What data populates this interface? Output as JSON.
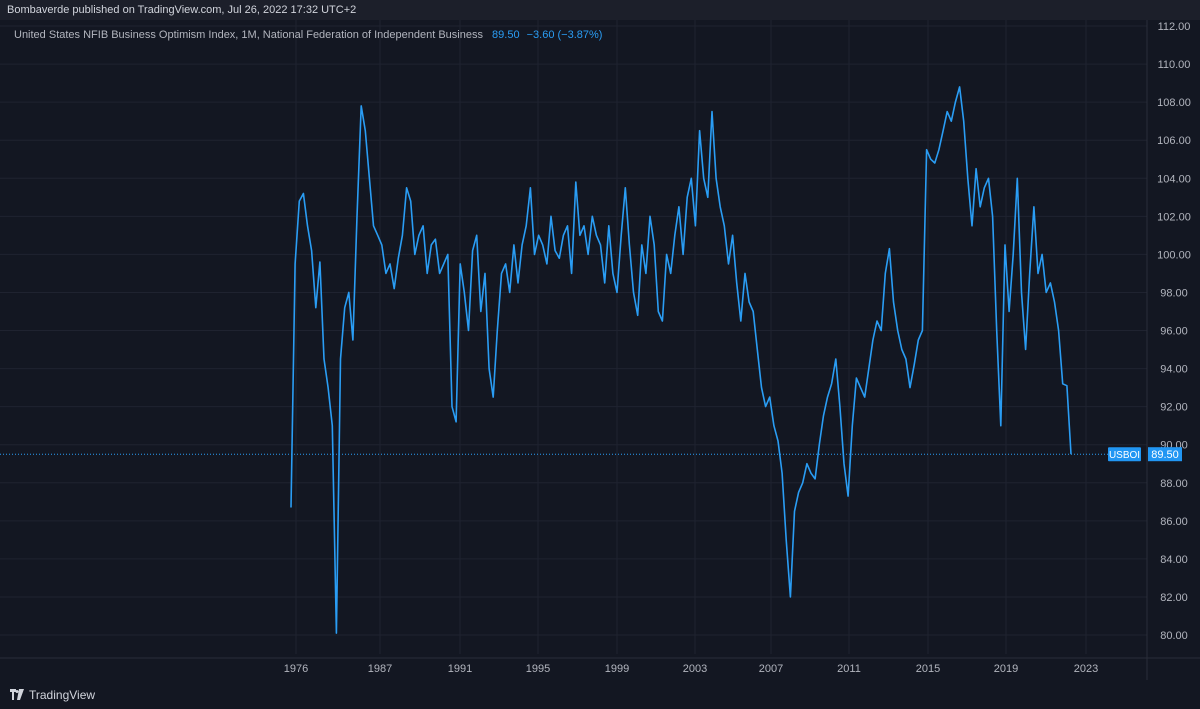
{
  "header": {
    "published": "Bombaverde published on TradingView.com, Jul 26, 2022 17:32 UTC+2"
  },
  "legend": {
    "name": "United States NFIB Business Optimism Index, 1M, National Federation of Independent Business",
    "value": "89.50",
    "change": "−3.60 (−3.87%)"
  },
  "price_tag": {
    "symbol": "USBOI",
    "value": "89.50"
  },
  "footer": {
    "brand": "TradingView"
  },
  "colors": {
    "background": "#131722",
    "line": "#2a9df4",
    "grid": "#1f2330",
    "tag": "#2196f3"
  },
  "chart_data": {
    "type": "line",
    "title": "United States NFIB Business Optimism Index, 1M, National Federation of Independent Business",
    "x_tick_labels": [
      "1976",
      "1987",
      "1991",
      "1995",
      "1999",
      "2003",
      "2007",
      "2011",
      "2015",
      "2019",
      "2023"
    ],
    "y_ticks": [
      80,
      82,
      84,
      86,
      88,
      90,
      92,
      94,
      96,
      98,
      100,
      102,
      104,
      106,
      108,
      110,
      112
    ],
    "ylim": [
      79,
      112
    ],
    "last_value": 89.5,
    "series": [
      {
        "values": [
          86.7,
          99.5,
          102.8,
          103.2,
          101.5,
          100.2,
          97.2,
          99.6,
          94.5,
          93.0,
          91.0,
          80.1,
          94.5,
          97.2,
          98.0,
          95.5,
          102.0,
          107.8,
          106.5,
          104.0,
          101.5,
          101.0,
          100.5,
          99.0,
          99.5,
          98.2,
          99.8,
          101.0,
          103.5,
          102.8,
          100.0,
          101.0,
          101.5,
          99.0,
          100.5,
          100.8,
          99.0,
          99.5,
          100.0,
          92.0,
          91.2,
          99.5,
          98.0,
          96.0,
          100.2,
          101.0,
          97.0,
          99.0,
          94.0,
          92.5,
          96.0,
          99.0,
          99.5,
          98.0,
          100.5,
          98.5,
          100.5,
          101.5,
          103.5,
          100.0,
          101.0,
          100.5,
          99.5,
          102.0,
          100.2,
          99.8,
          101.0,
          101.5,
          99.0,
          103.8,
          101.0,
          101.5,
          100.0,
          102.0,
          101.0,
          100.5,
          98.5,
          101.5,
          99.0,
          98.0,
          101.0,
          103.5,
          100.5,
          98.0,
          96.8,
          100.5,
          99.0,
          102.0,
          100.5,
          97.0,
          96.5,
          100.0,
          99.0,
          101.0,
          102.5,
          100.0,
          103.0,
          104.0,
          101.5,
          106.5,
          104.0,
          103.0,
          107.5,
          104.0,
          102.5,
          101.5,
          99.5,
          101.0,
          98.5,
          96.5,
          99.0,
          97.5,
          97.0,
          95.0,
          93.0,
          92.0,
          92.5,
          91.0,
          90.2,
          88.5,
          85.0,
          82.0,
          86.5,
          87.5,
          88.0,
          89.0,
          88.5,
          88.2,
          90.0,
          91.5,
          92.5,
          93.2,
          94.5,
          92.0,
          89.0,
          87.3,
          91.0,
          93.5,
          93.0,
          92.5,
          94.0,
          95.5,
          96.5,
          96.0,
          99.0,
          100.3,
          97.5,
          96.0,
          95.0,
          94.5,
          93.0,
          94.2,
          95.5,
          96.0,
          105.5,
          105.0,
          104.8,
          105.5,
          106.5,
          107.5,
          107.0,
          108.0,
          108.8,
          107.0,
          104.0,
          101.5,
          104.5,
          102.5,
          103.5,
          104.0,
          102.0,
          96.0,
          91.0,
          100.5,
          97.0,
          100.0,
          104.0,
          98.0,
          95.0,
          99.0,
          102.5,
          99.0,
          100.0,
          98.0,
          98.5,
          97.5,
          96.0,
          93.2,
          93.1,
          89.5
        ]
      }
    ]
  }
}
